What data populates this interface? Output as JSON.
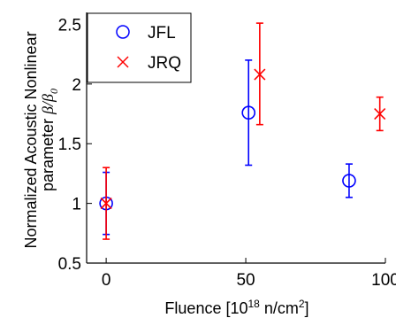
{
  "chart_data": {
    "type": "scatter",
    "xlabel": {
      "prefix": "Fluence [10",
      "sup": "18",
      "mid": " n/cm",
      "sup2": "2",
      "suffix": "]"
    },
    "ylabel": {
      "line1": "Normalized Acoustic Nonlinear",
      "line2_text": "parameter ",
      "line2_math": "β/β",
      "line2_sub": "0"
    },
    "xlim": [
      -7,
      100
    ],
    "ylim": [
      0.5,
      2.6
    ],
    "xticks": [
      0,
      50,
      100
    ],
    "xtick_labels": [
      "0",
      "50",
      "100"
    ],
    "yticks": [
      0.5,
      1,
      1.5,
      2,
      2.5
    ],
    "ytick_labels": [
      "0.5",
      "1",
      "1.5",
      "2",
      "2.5"
    ],
    "legend": {
      "position": "top-left"
    },
    "series": [
      {
        "name": "JFL",
        "marker": "circle",
        "color": "#0000ff",
        "points": [
          {
            "x": 0,
            "y": 1.0,
            "lo": 0.74,
            "hi": 1.26
          },
          {
            "x": 51,
            "y": 1.76,
            "lo": 1.32,
            "hi": 2.2
          },
          {
            "x": 87,
            "y": 1.19,
            "lo": 1.05,
            "hi": 1.33
          }
        ]
      },
      {
        "name": "JRQ",
        "marker": "x",
        "color": "#ff0000",
        "points": [
          {
            "x": 0,
            "y": 1.0,
            "lo": 0.7,
            "hi": 1.3
          },
          {
            "x": 55,
            "y": 2.08,
            "lo": 1.66,
            "hi": 2.51
          },
          {
            "x": 98,
            "y": 1.75,
            "lo": 1.61,
            "hi": 1.89
          }
        ]
      }
    ]
  }
}
